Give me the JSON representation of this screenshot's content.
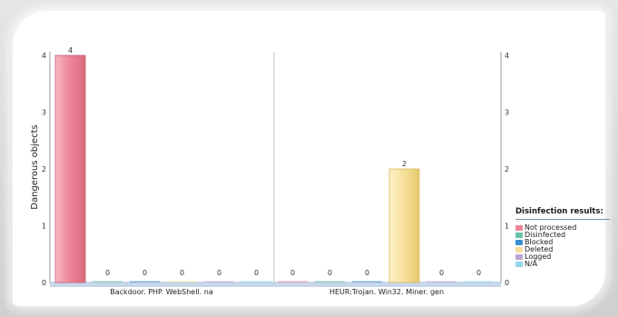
{
  "chart_data": {
    "type": "bar",
    "ylabel": "Dangerous objects",
    "ylim": [
      0,
      4
    ],
    "yticks": [
      0,
      1,
      2,
      3,
      4
    ],
    "groups": [
      {
        "label": "Backdoor. PHP. WebShell. na",
        "values": [
          4,
          0,
          0,
          0,
          0,
          0
        ]
      },
      {
        "label": "HEUR:Trojan. Win32. Miner. gen",
        "values": [
          0,
          0,
          0,
          2,
          0,
          0
        ]
      }
    ],
    "series": [
      {
        "name": "Not processed",
        "color": "#ee8497"
      },
      {
        "name": "Disinfected",
        "color": "#66c2a8"
      },
      {
        "name": "Blocked",
        "color": "#3a8fd0"
      },
      {
        "name": "Deleted",
        "color": "#f5df98"
      },
      {
        "name": "Logged",
        "color": "#b9a3d4"
      },
      {
        "name": "N/A",
        "color": "#8fd6e6"
      }
    ],
    "legend": {
      "title": "Disinfection results:",
      "position": "right"
    }
  }
}
